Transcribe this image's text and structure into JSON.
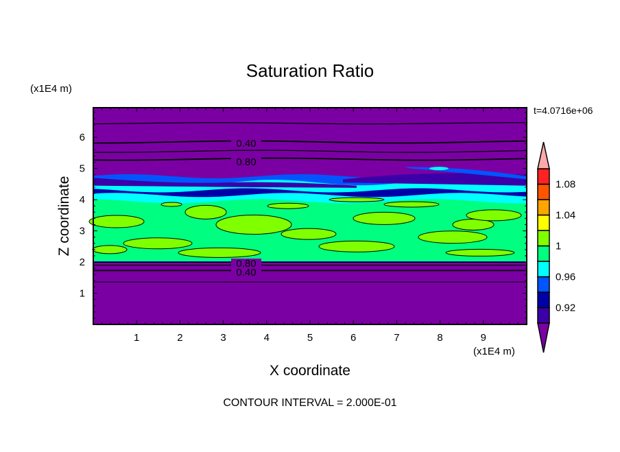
{
  "chart_data": {
    "type": "contour",
    "title": "Saturation Ratio",
    "xlabel": "X coordinate",
    "ylabel": "Z coordinate",
    "x_units": "(x1E4 m)",
    "y_units": "(x1E4 m)",
    "xlim": [
      0,
      10
    ],
    "ylim": [
      0,
      6.95
    ],
    "x_ticks": [
      "1",
      "2",
      "3",
      "4",
      "5",
      "6",
      "7",
      "8",
      "9"
    ],
    "y_ticks": [
      "1",
      "2",
      "3",
      "4",
      "5",
      "6"
    ],
    "time_label": "t=4.0716e+06",
    "footer": "CONTOUR INTERVAL = 2.000E-01",
    "contour_labels": [
      "0.40",
      "0.80",
      "0.80",
      "0.40"
    ],
    "colorbar": {
      "levels": [
        0.9,
        0.92,
        0.94,
        0.96,
        0.98,
        1.0,
        1.02,
        1.04,
        1.06,
        1.08,
        1.1
      ],
      "tick_labels": [
        "0.92",
        "0.96",
        "1",
        "1.04",
        "1.08"
      ],
      "colors": [
        "#7b00a3",
        "#3c00a8",
        "#0000a8",
        "#0055ff",
        "#00ffff",
        "#00ff80",
        "#80ff00",
        "#ffff00",
        "#ffa500",
        "#ff5500",
        "#ff2222",
        "#ffaaaa"
      ],
      "extend": "both"
    }
  }
}
